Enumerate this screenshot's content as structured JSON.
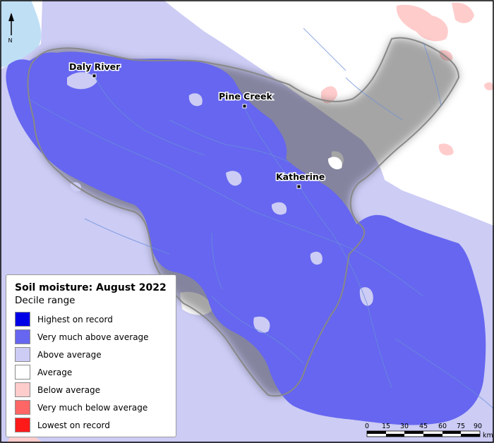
{
  "map": {
    "north_label": "N",
    "towns": [
      {
        "name": "Daly River"
      },
      {
        "name": "Pine Creek"
      },
      {
        "name": "Katherine"
      }
    ]
  },
  "legend": {
    "title": "Soil moisture: August 2022",
    "subtitle": "Decile range",
    "items": [
      {
        "label": "Highest on record",
        "color": "#0000e6"
      },
      {
        "label": "Very much above average",
        "color": "#6666f0"
      },
      {
        "label": "Above average",
        "color": "#ccccf5"
      },
      {
        "label": "Average",
        "color": "#ffffff"
      },
      {
        "label": "Below average",
        "color": "#ffcccc"
      },
      {
        "label": "Very much below average",
        "color": "#ff6666"
      },
      {
        "label": "Lowest on record",
        "color": "#ff1a1a"
      }
    ]
  },
  "scale_bar": {
    "ticks": [
      "0",
      "15",
      "30",
      "45",
      "60",
      "75",
      "90"
    ],
    "unit": "km"
  }
}
